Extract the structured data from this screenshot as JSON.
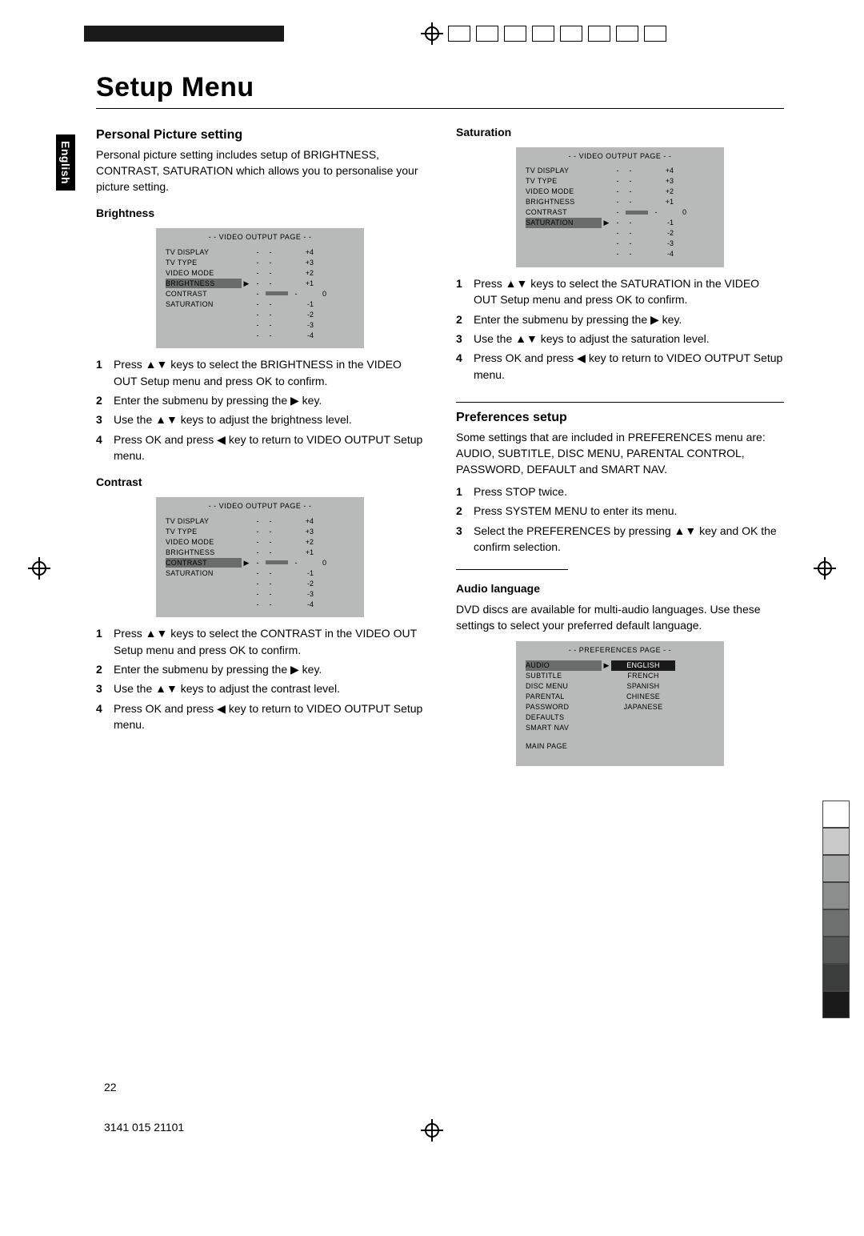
{
  "page_title": "Setup Menu",
  "language_tab": "English",
  "page_number": "22",
  "part_number": "3141 015 21101",
  "left_column": {
    "h1": "Personal Picture setting",
    "intro": "Personal picture setting includes setup of BRIGHTNESS, CONTRAST, SATURATION which allows you to personalise your picture setting.",
    "brightness": {
      "heading": "Brightness",
      "menu": {
        "title": "- -   VIDEO OUTPUT PAGE   - -",
        "highlight": "BRIGHTNESS",
        "rows": [
          {
            "label": "TV DISPLAY",
            "val": "+4"
          },
          {
            "label": "TV TYPE",
            "val": "+3"
          },
          {
            "label": "VIDEO MODE",
            "val": "+2"
          },
          {
            "label": "BRIGHTNESS",
            "val": "+1"
          },
          {
            "label": "CONTRAST",
            "val": "0"
          },
          {
            "label": "SATURATION",
            "val": "-1"
          },
          {
            "label": "",
            "val": "-2"
          },
          {
            "label": "",
            "val": "-3"
          },
          {
            "label": "",
            "val": "-4"
          }
        ]
      },
      "steps": [
        "Press ▲▼ keys to select the BRIGHTNESS in the VIDEO OUT Setup menu and press OK to confirm.",
        "Enter the submenu by pressing the ▶ key.",
        "Use the ▲▼ keys to adjust the brightness level.",
        "Press OK and press ◀ key to return to VIDEO OUTPUT Setup menu."
      ]
    },
    "contrast": {
      "heading": "Contrast",
      "menu": {
        "title": "- -   VIDEO OUTPUT PAGE   - -",
        "highlight": "CONTRAST",
        "rows": [
          {
            "label": "TV DISPLAY",
            "val": "+4"
          },
          {
            "label": "TV TYPE",
            "val": "+3"
          },
          {
            "label": "VIDEO MODE",
            "val": "+2"
          },
          {
            "label": "BRIGHTNESS",
            "val": "+1"
          },
          {
            "label": "CONTRAST",
            "val": "0"
          },
          {
            "label": "SATURATION",
            "val": "-1"
          },
          {
            "label": "",
            "val": "-2"
          },
          {
            "label": "",
            "val": "-3"
          },
          {
            "label": "",
            "val": "-4"
          }
        ]
      },
      "steps": [
        "Press ▲▼ keys to select the CONTRAST in the VIDEO OUT Setup menu and press OK to confirm.",
        "Enter the submenu by pressing the ▶ key.",
        "Use the ▲▼ keys to adjust the contrast level.",
        "Press OK and press ◀ key to return to VIDEO OUTPUT Setup menu."
      ]
    }
  },
  "right_column": {
    "saturation": {
      "heading": "Saturation",
      "menu": {
        "title": "- -   VIDEO OUTPUT PAGE   - -",
        "highlight": "SATURATION",
        "rows": [
          {
            "label": "TV DISPLAY",
            "val": "+4"
          },
          {
            "label": "TV TYPE",
            "val": "+3"
          },
          {
            "label": "VIDEO MODE",
            "val": "+2"
          },
          {
            "label": "BRIGHTNESS",
            "val": "+1"
          },
          {
            "label": "CONTRAST",
            "val": "0"
          },
          {
            "label": "SATURATION",
            "val": "-1"
          },
          {
            "label": "",
            "val": "-2"
          },
          {
            "label": "",
            "val": "-3"
          },
          {
            "label": "",
            "val": "-4"
          }
        ]
      },
      "steps": [
        "Press ▲▼ keys to select the SATURATION in the VIDEO OUT Setup menu and press OK to confirm.",
        "Enter the submenu by pressing the ▶ key.",
        "Use the ▲▼ keys to adjust the saturation level.",
        "Press OK and press ◀ key to return to VIDEO OUTPUT Setup menu."
      ]
    },
    "preferences": {
      "h1": "Preferences setup",
      "intro": "Some settings that are included in PREFERENCES menu are: AUDIO, SUBTITLE, DISC MENU, PARENTAL CONTROL, PASSWORD, DEFAULT and SMART NAV.",
      "steps": [
        "Press STOP twice.",
        "Press SYSTEM MENU to enter its menu.",
        "Select the PREFERENCES by pressing ▲▼ key and OK the confirm selection."
      ]
    },
    "audio_language": {
      "heading": "Audio language",
      "intro": "DVD discs are available for multi-audio languages. Use these settings to select your preferred default language.",
      "menu": {
        "title": "- -   PREFERENCES PAGE   - -",
        "labels": [
          "AUDIO",
          "SUBTITLE",
          "DISC MENU",
          "PARENTAL",
          "PASSWORD",
          "DEFAULTS",
          "SMART NAV"
        ],
        "main_page": "MAIN PAGE",
        "options": [
          "ENGLISH",
          "FRENCH",
          "SPANISH",
          "CHINESE",
          "JAPANESE"
        ]
      }
    }
  },
  "color_stack": [
    "#ffffff",
    "#c9c9c9",
    "#a8aaa9",
    "#8c8e8d",
    "#6e706f",
    "#565857",
    "#3b3d3c",
    "#1a1a1a"
  ]
}
